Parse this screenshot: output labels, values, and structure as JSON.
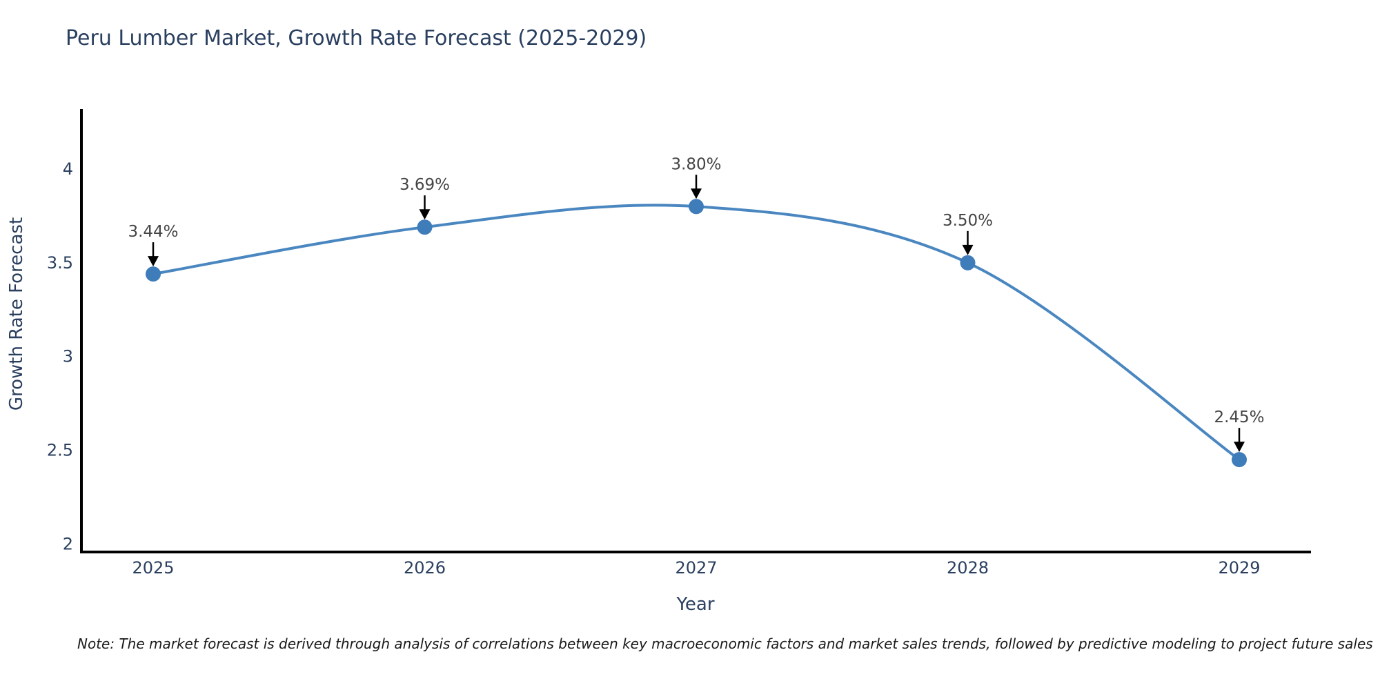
{
  "title": "Peru Lumber Market, Growth Rate Forecast (2025-2029)",
  "chart_data": {
    "type": "line",
    "line_shape": "spline",
    "categories": [
      "2025",
      "2026",
      "2027",
      "2028",
      "2029"
    ],
    "values": [
      3.44,
      3.69,
      3.8,
      3.5,
      2.45
    ],
    "point_labels": [
      "3.44%",
      "3.69%",
      "3.80%",
      "3.50%",
      "2.45%"
    ],
    "xlabel": "Year",
    "ylabel": "Growth Rate Forecast",
    "ytick_values": [
      2,
      2.5,
      3,
      3.5,
      4
    ],
    "ytick_labels": [
      "2",
      "2.5",
      "3",
      "3.5",
      "4"
    ],
    "ylim": [
      1.95,
      4.32
    ],
    "grid": false,
    "legend": "none",
    "colors": {
      "line": "#4a87c0",
      "marker": "#3f7cba",
      "axis_line": "#000000",
      "tick_label": "#2a3f5f",
      "annotation_text": "#444444",
      "annotation_arrow": "#000000"
    }
  },
  "note": "Note: The market forecast is derived through analysis of correlations between key macroeconomic factors and market sales trends, followed by predictive modeling to project future sales"
}
